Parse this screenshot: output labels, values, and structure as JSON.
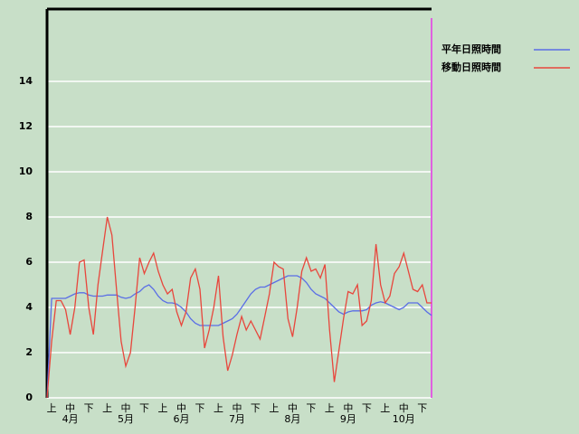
{
  "chart_data": {
    "type": "line",
    "categories": [
      null,
      "上",
      null,
      null,
      null,
      "中",
      null,
      null,
      null,
      "下",
      null,
      null,
      null,
      "上",
      null,
      null,
      null,
      "中",
      null,
      null,
      null,
      "下",
      null,
      null,
      null,
      "上",
      null,
      null,
      null,
      "中",
      null,
      null,
      null,
      "下",
      null,
      null,
      null,
      "上",
      null,
      null,
      null,
      "中",
      null,
      null,
      null,
      "下",
      null,
      null,
      null,
      "上",
      null,
      null,
      null,
      "中",
      null,
      null,
      null,
      "下",
      null,
      null,
      null,
      "上",
      null,
      null,
      null,
      "中",
      null,
      null,
      null,
      "下",
      null,
      null,
      null,
      "上",
      null,
      null,
      null,
      "中",
      null,
      null,
      null,
      "下",
      null,
      null
    ],
    "months": [
      "4月",
      "5月",
      "6月",
      "7月",
      "8月",
      "9月",
      "10月"
    ],
    "series": [
      {
        "name": "平年日照時間",
        "color": "#5a6ee6",
        "values": [
          0,
          4.4,
          4.4,
          4.4,
          4.4,
          4.5,
          4.6,
          4.65,
          4.65,
          4.55,
          4.5,
          4.5,
          4.5,
          4.55,
          4.55,
          4.55,
          4.45,
          4.4,
          4.45,
          4.6,
          4.7,
          4.9,
          5,
          4.8,
          4.5,
          4.3,
          4.2,
          4.2,
          4.15,
          4,
          3.8,
          3.5,
          3.3,
          3.2,
          3.2,
          3.2,
          3.2,
          3.2,
          3.3,
          3.4,
          3.5,
          3.7,
          4,
          4.3,
          4.6,
          4.8,
          4.9,
          4.9,
          5,
          5.1,
          5.2,
          5.3,
          5.4,
          5.4,
          5.4,
          5.3,
          5.1,
          4.8,
          4.6,
          4.5,
          4.4,
          4.2,
          4,
          3.8,
          3.7,
          3.8,
          3.85,
          3.85,
          3.85,
          3.9,
          4.1,
          4.2,
          4.25,
          4.2,
          4.1,
          4,
          3.9,
          4,
          4.2,
          4.2,
          4.2,
          4,
          3.8,
          3.65
        ]
      },
      {
        "name": "移動日照時間",
        "color": "#e8463c",
        "values": [
          0,
          2.5,
          4.3,
          4.3,
          3.9,
          2.8,
          4,
          6,
          6.1,
          4,
          2.8,
          5,
          6.5,
          8,
          7.2,
          4.8,
          2.5,
          1.4,
          2,
          4,
          6.2,
          5.5,
          6,
          6.4,
          5.6,
          5,
          4.6,
          4.8,
          3.8,
          3.2,
          3.8,
          5.3,
          5.7,
          4.8,
          2.2,
          3,
          4,
          5.4,
          2.7,
          1.2,
          1.9,
          2.8,
          3.6,
          3,
          3.4,
          3,
          2.6,
          3.6,
          4.6,
          6,
          5.8,
          5.7,
          3.5,
          2.7,
          4,
          5.6,
          6.2,
          5.6,
          5.7,
          5.3,
          5.9,
          3,
          0.7,
          2.1,
          3.5,
          4.7,
          4.6,
          5,
          3.2,
          3.4,
          4.3,
          6.8,
          5,
          4.2,
          4.5,
          5.5,
          5.8,
          6.4,
          5.6,
          4.8,
          4.7,
          5,
          4.2,
          4.2
        ]
      }
    ],
    "ylim": [
      0,
      17.2
    ],
    "yticks": [
      0,
      2,
      4,
      6,
      8,
      10,
      12,
      14
    ],
    "grid": true
  }
}
